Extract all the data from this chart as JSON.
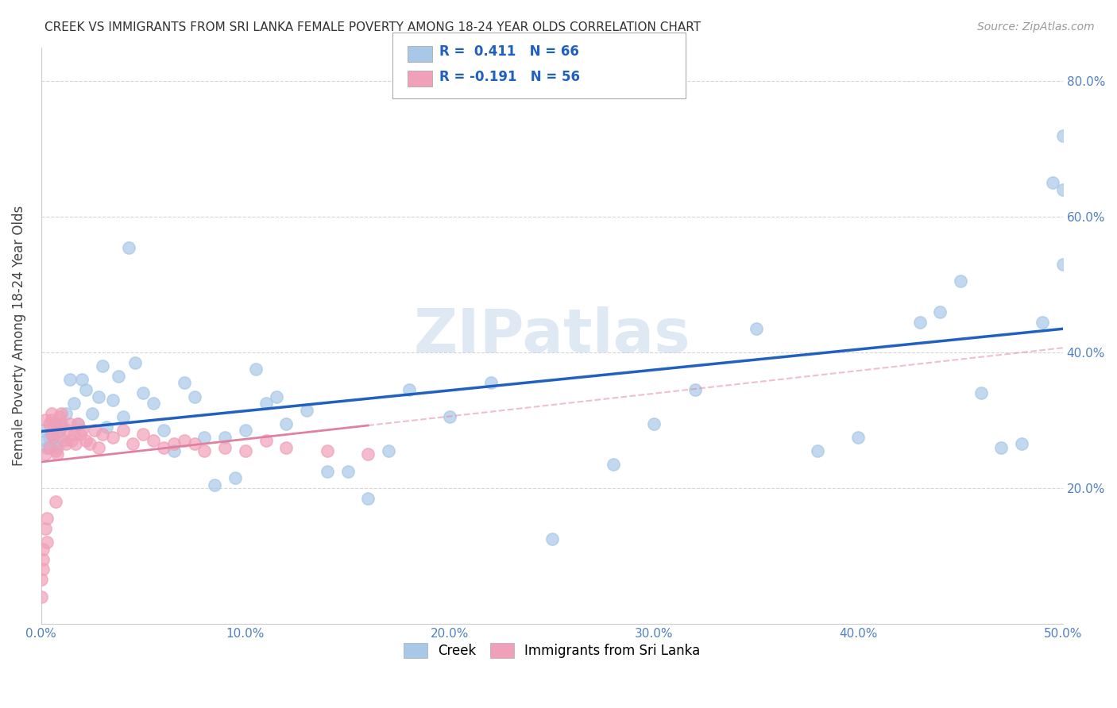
{
  "title": "CREEK VS IMMIGRANTS FROM SRI LANKA FEMALE POVERTY AMONG 18-24 YEAR OLDS CORRELATION CHART",
  "source": "Source: ZipAtlas.com",
  "ylabel": "Female Poverty Among 18-24 Year Olds",
  "xlim": [
    0.0,
    0.5
  ],
  "ylim": [
    0.0,
    0.85
  ],
  "xticks": [
    0.0,
    0.1,
    0.2,
    0.3,
    0.4,
    0.5
  ],
  "xticklabels": [
    "0.0%",
    "10.0%",
    "20.0%",
    "30.0%",
    "40.0%",
    "50.0%"
  ],
  "yticks": [
    0.0,
    0.2,
    0.4,
    0.6,
    0.8
  ],
  "yticklabels_right": [
    "",
    "20.0%",
    "40.0%",
    "60.0%",
    "80.0%"
  ],
  "legend_labels": [
    "Creek",
    "Immigrants from Sri Lanka"
  ],
  "creek_color": "#a8c8e8",
  "srilanka_color": "#f0a0b8",
  "creek_line_color": "#2060c0",
  "srilanka_line_color": "#e080a0",
  "R_creek": 0.411,
  "N_creek": 66,
  "R_srilanka": -0.191,
  "N_srilanka": 56,
  "background_color": "#ffffff",
  "creek_x": [
    0.001,
    0.002,
    0.003,
    0.004,
    0.005,
    0.006,
    0.007,
    0.008,
    0.009,
    0.01,
    0.012,
    0.014,
    0.016,
    0.018,
    0.02,
    0.022,
    0.025,
    0.028,
    0.03,
    0.032,
    0.035,
    0.038,
    0.04,
    0.043,
    0.046,
    0.05,
    0.055,
    0.06,
    0.065,
    0.07,
    0.075,
    0.08,
    0.085,
    0.09,
    0.095,
    0.1,
    0.105,
    0.11,
    0.115,
    0.12,
    0.13,
    0.14,
    0.15,
    0.16,
    0.17,
    0.18,
    0.2,
    0.22,
    0.25,
    0.28,
    0.3,
    0.32,
    0.35,
    0.38,
    0.4,
    0.43,
    0.44,
    0.45,
    0.46,
    0.47,
    0.48,
    0.49,
    0.495,
    0.5,
    0.5,
    0.5
  ],
  "creek_y": [
    0.285,
    0.27,
    0.26,
    0.275,
    0.28,
    0.265,
    0.295,
    0.26,
    0.275,
    0.29,
    0.31,
    0.36,
    0.325,
    0.295,
    0.36,
    0.345,
    0.31,
    0.335,
    0.38,
    0.29,
    0.33,
    0.365,
    0.305,
    0.555,
    0.385,
    0.34,
    0.325,
    0.285,
    0.255,
    0.355,
    0.335,
    0.275,
    0.205,
    0.275,
    0.215,
    0.285,
    0.375,
    0.325,
    0.335,
    0.295,
    0.315,
    0.225,
    0.225,
    0.185,
    0.255,
    0.345,
    0.305,
    0.355,
    0.125,
    0.235,
    0.295,
    0.345,
    0.435,
    0.255,
    0.275,
    0.445,
    0.46,
    0.505,
    0.34,
    0.26,
    0.265,
    0.445,
    0.65,
    0.64,
    0.72,
    0.53
  ],
  "srilanka_x": [
    0.0,
    0.0,
    0.001,
    0.001,
    0.001,
    0.002,
    0.002,
    0.002,
    0.003,
    0.003,
    0.004,
    0.004,
    0.005,
    0.005,
    0.005,
    0.006,
    0.006,
    0.007,
    0.007,
    0.008,
    0.008,
    0.009,
    0.009,
    0.01,
    0.01,
    0.011,
    0.012,
    0.013,
    0.014,
    0.015,
    0.016,
    0.017,
    0.018,
    0.019,
    0.02,
    0.022,
    0.024,
    0.026,
    0.028,
    0.03,
    0.035,
    0.04,
    0.045,
    0.05,
    0.055,
    0.06,
    0.065,
    0.07,
    0.075,
    0.08,
    0.09,
    0.1,
    0.11,
    0.12,
    0.14,
    0.16
  ],
  "srilanka_y": [
    0.04,
    0.065,
    0.08,
    0.095,
    0.11,
    0.14,
    0.25,
    0.3,
    0.12,
    0.155,
    0.26,
    0.295,
    0.28,
    0.3,
    0.31,
    0.275,
    0.295,
    0.18,
    0.255,
    0.25,
    0.29,
    0.285,
    0.305,
    0.295,
    0.31,
    0.27,
    0.265,
    0.285,
    0.295,
    0.27,
    0.28,
    0.265,
    0.295,
    0.28,
    0.285,
    0.27,
    0.265,
    0.285,
    0.26,
    0.28,
    0.275,
    0.285,
    0.265,
    0.28,
    0.27,
    0.26,
    0.265,
    0.27,
    0.265,
    0.255,
    0.26,
    0.255,
    0.27,
    0.26,
    0.255,
    0.25
  ]
}
